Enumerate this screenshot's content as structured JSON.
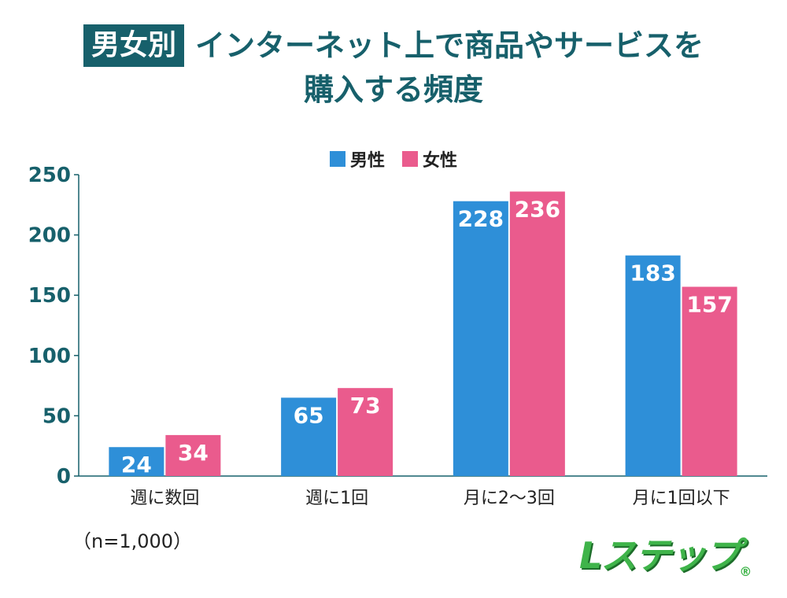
{
  "title": {
    "tag": "男女別",
    "line1": "インターネット上で商品やサービスを",
    "line2": "購入する頻度"
  },
  "legend": [
    {
      "name": "男性",
      "color": "#2e8fd8"
    },
    {
      "name": "女性",
      "color": "#ea5b8d"
    }
  ],
  "note": "（n=1,000）",
  "logo": {
    "text": "Lステップ",
    "mark": "®"
  },
  "chart_data": {
    "type": "bar",
    "categories": [
      "週に数回",
      "週に1回",
      "月に2〜3回",
      "月に1回以下"
    ],
    "series": [
      {
        "name": "男性",
        "color": "#2e8fd8",
        "values": [
          24,
          65,
          228,
          183
        ]
      },
      {
        "name": "女性",
        "color": "#ea5b8d",
        "values": [
          34,
          73,
          236,
          157
        ]
      }
    ],
    "yticks": [
      0,
      50,
      100,
      150,
      200,
      250
    ],
    "ylim": [
      0,
      250
    ],
    "axis_color": "#17606b",
    "data_labels": true,
    "legend_position": "top-center"
  }
}
